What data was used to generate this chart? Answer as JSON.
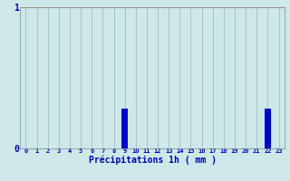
{
  "title": "Précipitations 1h ( mm )",
  "categories": [
    0,
    1,
    2,
    3,
    4,
    5,
    6,
    7,
    8,
    9,
    10,
    11,
    12,
    13,
    14,
    15,
    16,
    17,
    18,
    19,
    20,
    21,
    22,
    23
  ],
  "values": [
    0,
    0,
    0,
    0,
    0,
    0,
    0,
    0,
    0,
    0.28,
    0,
    0,
    0,
    0,
    0,
    0,
    0,
    0,
    0,
    0,
    0,
    0,
    0.28,
    0
  ],
  "bar_color": "#0000dd",
  "background_color": "#cce8e8",
  "grid_color_h": "#cc8888",
  "grid_color_v": "#aabbbb",
  "axis_label_color": "#0000bb",
  "title_color": "#0000bb",
  "ylim": [
    0,
    1
  ],
  "yticks": [
    0,
    1
  ],
  "xlim": [
    -0.5,
    23.5
  ],
  "bar_width": 0.6
}
